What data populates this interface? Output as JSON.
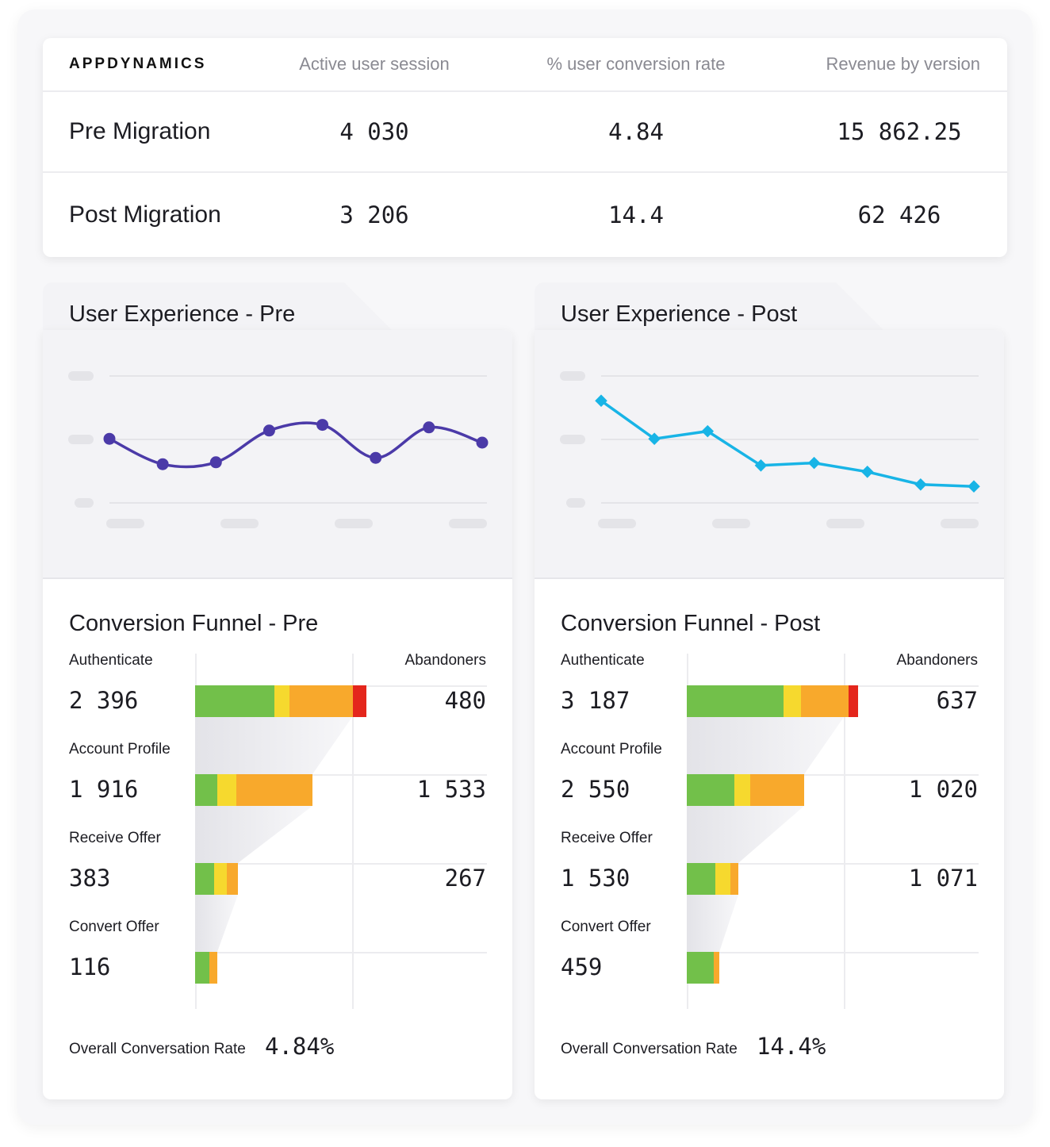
{
  "brand": "APPDYNAMICS",
  "table": {
    "headers": [
      "Active user session",
      "% user conversion rate",
      "Revenue by version"
    ],
    "rows": [
      {
        "label": "Pre Migration",
        "sessions": "4 030",
        "conversion": "4.84",
        "revenue": "15 862.25"
      },
      {
        "label": "Post Migration",
        "sessions": "3 206",
        "conversion": "14.4",
        "revenue": "62 426"
      }
    ]
  },
  "colors": {
    "pre_line": "#4b3aa8",
    "post_line": "#18b4e6",
    "green": "#72c04a",
    "yellow": "#f6d92e",
    "orange": "#f8a92c",
    "red": "#e4261c"
  },
  "panels": [
    {
      "key": "pre",
      "ux_title": "User Experience - Pre",
      "funnel_title": "Conversion Funnel - Pre",
      "abandoners_label": "Abandoners",
      "overall_label": "Overall Conversation Rate",
      "overall_value": "4.84%",
      "stages": [
        {
          "label": "Authenticate",
          "value": "2 396",
          "abandoners": "480",
          "share": 1.0,
          "mix": [
            0.465,
            0.085,
            0.37,
            0.08
          ]
        },
        {
          "label": "Account Profile",
          "value": "1 916",
          "abandoners": "1 533",
          "share": 0.686,
          "mix": [
            0.19,
            0.16,
            0.65,
            0.0
          ]
        },
        {
          "label": "Receive Offer",
          "value": "383",
          "abandoners": "267",
          "share": 0.25,
          "mix": [
            0.44,
            0.3,
            0.26,
            0.0
          ]
        },
        {
          "label": "Convert Offer",
          "value": "116",
          "abandoners": "",
          "share": 0.13,
          "mix": [
            0.64,
            0.0,
            0.36,
            0.0
          ]
        }
      ]
    },
    {
      "key": "post",
      "ux_title": "User Experience - Post",
      "funnel_title": "Conversion Funnel - Post",
      "abandoners_label": "Abandoners",
      "overall_label": "Overall Conversation Rate",
      "overall_value": "14.4%",
      "stages": [
        {
          "label": "Authenticate",
          "value": "3 187",
          "abandoners": "637",
          "share": 1.0,
          "mix": [
            0.565,
            0.1,
            0.28,
            0.055
          ]
        },
        {
          "label": "Account Profile",
          "value": "2 550",
          "abandoners": "1 020",
          "share": 0.685,
          "mix": [
            0.405,
            0.135,
            0.46,
            0.0
          ]
        },
        {
          "label": "Receive Offer",
          "value": "1 530",
          "abandoners": "1 071",
          "share": 0.3,
          "mix": [
            0.56,
            0.28,
            0.16,
            0.0
          ]
        },
        {
          "label": "Convert Offer",
          "value": "459",
          "abandoners": "",
          "share": 0.19,
          "mix": [
            0.82,
            0.0,
            0.18,
            0.0
          ]
        }
      ]
    }
  ],
  "chart_data": [
    {
      "type": "line",
      "title": "User Experience - Pre",
      "x": [
        1,
        2,
        3,
        4,
        5,
        6,
        7,
        8
      ],
      "values": [
        50.5,
        30.5,
        32.0,
        57.0,
        61.5,
        35.5,
        59.5,
        47.5
      ],
      "ylim": [
        0,
        100
      ],
      "smooth": true,
      "marker": "circle"
    },
    {
      "type": "line",
      "title": "User Experience - Post",
      "x": [
        1,
        2,
        3,
        4,
        5,
        6,
        7,
        8
      ],
      "values": [
        80.5,
        50.5,
        56.5,
        29.5,
        31.5,
        24.5,
        14.5,
        13.0
      ],
      "ylim": [
        0,
        100
      ],
      "smooth": false,
      "marker": "diamond"
    }
  ]
}
